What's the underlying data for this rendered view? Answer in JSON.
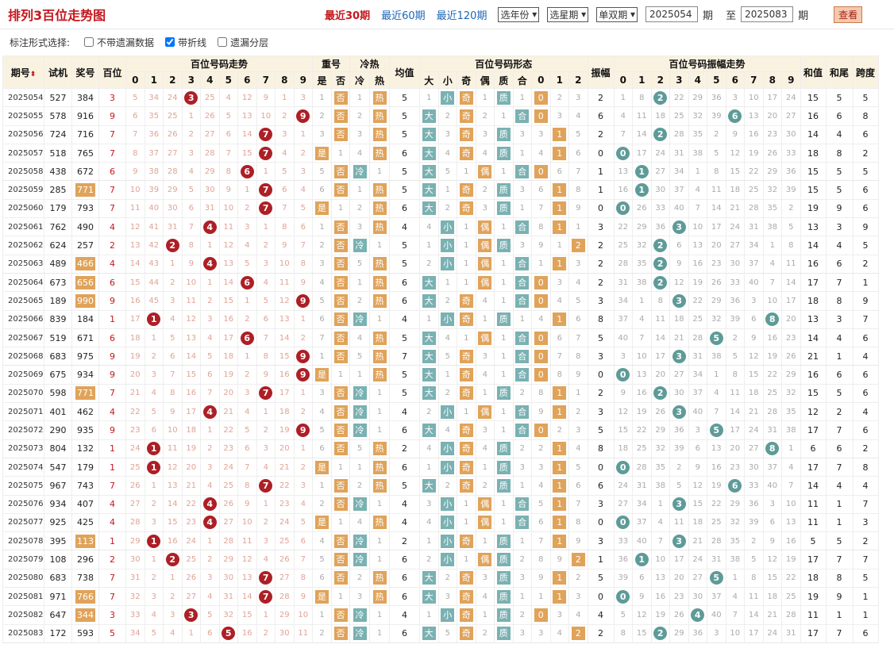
{
  "header": {
    "title": "排列3百位走势图",
    "links": [
      "最近30期",
      "最近60期",
      "最近120期"
    ],
    "year_select": "选年份",
    "week_select": "选星期",
    "odd_select": "单双期",
    "from": "2025054",
    "to_label": "至",
    "to": "2025083",
    "qi": "期",
    "view": "查看"
  },
  "options": {
    "label": "标注形式选择:",
    "items": [
      {
        "label": "不带遗漏数据",
        "checked": false
      },
      {
        "label": "带折线",
        "checked": true
      },
      {
        "label": "遗漏分层",
        "checked": false
      }
    ]
  },
  "columns": {
    "issue": "期号",
    "test": "试机",
    "prize": "奖号",
    "hundreds": "百位",
    "trend": "百位号码走势",
    "repeat": "重号",
    "coldhot": "冷热",
    "avg": "均值",
    "form": "百位号码形态",
    "amp": "振幅",
    "ampTrend": "百位号码振幅走势",
    "sum": "和值",
    "tail": "和尾",
    "span": "跨度"
  },
  "sub": {
    "digits": [
      "0",
      "1",
      "2",
      "3",
      "4",
      "5",
      "6",
      "7",
      "8",
      "9"
    ],
    "repeat": [
      "是",
      "否"
    ],
    "coldhot": [
      "冷",
      "热"
    ],
    "form": [
      "大",
      "小",
      "奇",
      "偶",
      "质",
      "合",
      "0",
      "1",
      "2"
    ]
  },
  "rows": [
    [
      "2025054",
      "527",
      "384",
      "3"
    ],
    [
      "2025055",
      "578",
      "916",
      "9"
    ],
    [
      "2025056",
      "724",
      "716",
      "7"
    ],
    [
      "2025057",
      "518",
      "765",
      "7"
    ],
    [
      "2025058",
      "438",
      "672",
      "6"
    ],
    [
      "2025059",
      "285",
      "771",
      "7"
    ],
    [
      "2025060",
      "179",
      "793",
      "7"
    ],
    [
      "2025061",
      "762",
      "490",
      "4"
    ],
    [
      "2025062",
      "624",
      "257",
      "2"
    ],
    [
      "2025063",
      "489",
      "466",
      "4"
    ],
    [
      "2025064",
      "673",
      "656",
      "6"
    ],
    [
      "2025065",
      "189",
      "990",
      "9"
    ],
    [
      "2025066",
      "839",
      "184",
      "1"
    ],
    [
      "2025067",
      "519",
      "671",
      "6"
    ],
    [
      "2025068",
      "683",
      "975",
      "9"
    ],
    [
      "2025069",
      "675",
      "934",
      "9"
    ],
    [
      "2025070",
      "598",
      "771",
      "7"
    ],
    [
      "2025071",
      "401",
      "462",
      "4"
    ],
    [
      "2025072",
      "290",
      "935",
      "9"
    ],
    [
      "2025073",
      "804",
      "132",
      "1"
    ],
    [
      "2025074",
      "547",
      "179",
      "1"
    ],
    [
      "2025075",
      "967",
      "743",
      "7"
    ],
    [
      "2025076",
      "934",
      "407",
      "4"
    ],
    [
      "2025077",
      "925",
      "425",
      "4"
    ],
    [
      "2025078",
      "395",
      "113",
      "1"
    ],
    [
      "2025079",
      "108",
      "296",
      "2"
    ],
    [
      "2025080",
      "683",
      "738",
      "7"
    ],
    [
      "2025081",
      "971",
      "766",
      "7"
    ],
    [
      "2025082",
      "647",
      "344",
      "3"
    ],
    [
      "2025083",
      "172",
      "593",
      "5"
    ]
  ],
  "trend_miss": [
    [
      "5",
      "34",
      "24",
      "3",
      "25",
      "4",
      "12",
      "9",
      "1",
      "3"
    ],
    [
      "6",
      "35",
      "25",
      "1",
      "26",
      "5",
      "13",
      "10",
      "2",
      "9"
    ],
    [
      "7",
      "36",
      "26",
      "2",
      "27",
      "6",
      "14",
      "7",
      "3",
      "1"
    ],
    [
      "8",
      "37",
      "27",
      "3",
      "28",
      "7",
      "15",
      "7",
      "4",
      "2"
    ],
    [
      "9",
      "38",
      "28",
      "4",
      "29",
      "8",
      "6",
      "1",
      "5",
      "3"
    ],
    [
      "10",
      "39",
      "29",
      "5",
      "30",
      "9",
      "1",
      "7",
      "6",
      "4"
    ],
    [
      "11",
      "40",
      "30",
      "6",
      "31",
      "10",
      "2",
      "7",
      "7",
      "5"
    ],
    [
      "12",
      "41",
      "31",
      "7",
      "4",
      "11",
      "3",
      "1",
      "8",
      "6"
    ],
    [
      "13",
      "42",
      "2",
      "8",
      "1",
      "12",
      "4",
      "2",
      "9",
      "7"
    ],
    [
      "14",
      "43",
      "1",
      "9",
      "4",
      "13",
      "5",
      "3",
      "10",
      "8"
    ],
    [
      "15",
      "44",
      "2",
      "10",
      "1",
      "14",
      "6",
      "4",
      "11",
      "9"
    ],
    [
      "16",
      "45",
      "3",
      "11",
      "2",
      "15",
      "1",
      "5",
      "12",
      "9"
    ],
    [
      "17",
      "1",
      "4",
      "12",
      "3",
      "16",
      "2",
      "6",
      "13",
      "1"
    ],
    [
      "18",
      "1",
      "5",
      "13",
      "4",
      "17",
      "6",
      "7",
      "14",
      "2"
    ],
    [
      "19",
      "2",
      "6",
      "14",
      "5",
      "18",
      "1",
      "8",
      "15",
      "9"
    ],
    [
      "20",
      "3",
      "7",
      "15",
      "6",
      "19",
      "2",
      "9",
      "16",
      "9"
    ],
    [
      "21",
      "4",
      "8",
      "16",
      "7",
      "20",
      "3",
      "7",
      "17",
      "1"
    ],
    [
      "22",
      "5",
      "9",
      "17",
      "4",
      "21",
      "4",
      "1",
      "18",
      "2"
    ],
    [
      "23",
      "6",
      "10",
      "18",
      "1",
      "22",
      "5",
      "2",
      "19",
      "9"
    ],
    [
      "24",
      "1",
      "11",
      "19",
      "2",
      "23",
      "6",
      "3",
      "20",
      "1"
    ],
    [
      "25",
      "1",
      "12",
      "20",
      "3",
      "24",
      "7",
      "4",
      "21",
      "2"
    ],
    [
      "26",
      "1",
      "13",
      "21",
      "4",
      "25",
      "8",
      "7",
      "22",
      "3"
    ],
    [
      "27",
      "2",
      "14",
      "22",
      "4",
      "26",
      "9",
      "1",
      "23",
      "4"
    ],
    [
      "28",
      "3",
      "15",
      "23",
      "4",
      "27",
      "10",
      "2",
      "24",
      "5"
    ],
    [
      "29",
      "1",
      "16",
      "24",
      "1",
      "28",
      "11",
      "3",
      "25",
      "6"
    ],
    [
      "30",
      "1",
      "2",
      "25",
      "2",
      "29",
      "12",
      "4",
      "26",
      "7"
    ],
    [
      "31",
      "2",
      "1",
      "26",
      "3",
      "30",
      "13",
      "7",
      "27",
      "8"
    ],
    [
      "32",
      "3",
      "2",
      "27",
      "4",
      "31",
      "14",
      "7",
      "28",
      "9"
    ],
    [
      "33",
      "4",
      "3",
      "3",
      "5",
      "32",
      "15",
      "1",
      "29",
      "10"
    ],
    [
      "34",
      "5",
      "4",
      "1",
      "6",
      "5",
      "16",
      "2",
      "30",
      "11"
    ]
  ]
}
